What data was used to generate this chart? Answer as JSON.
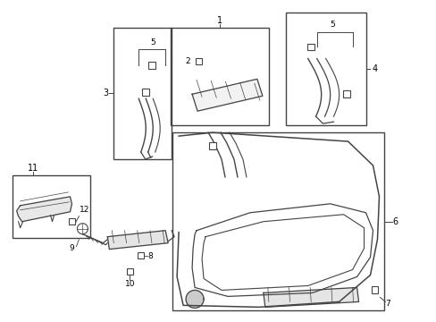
{
  "bg_color": "#ffffff",
  "line_color": "#444444",
  "label_color": "#000000",
  "fig_width": 4.89,
  "fig_height": 3.6,
  "dpi": 100
}
